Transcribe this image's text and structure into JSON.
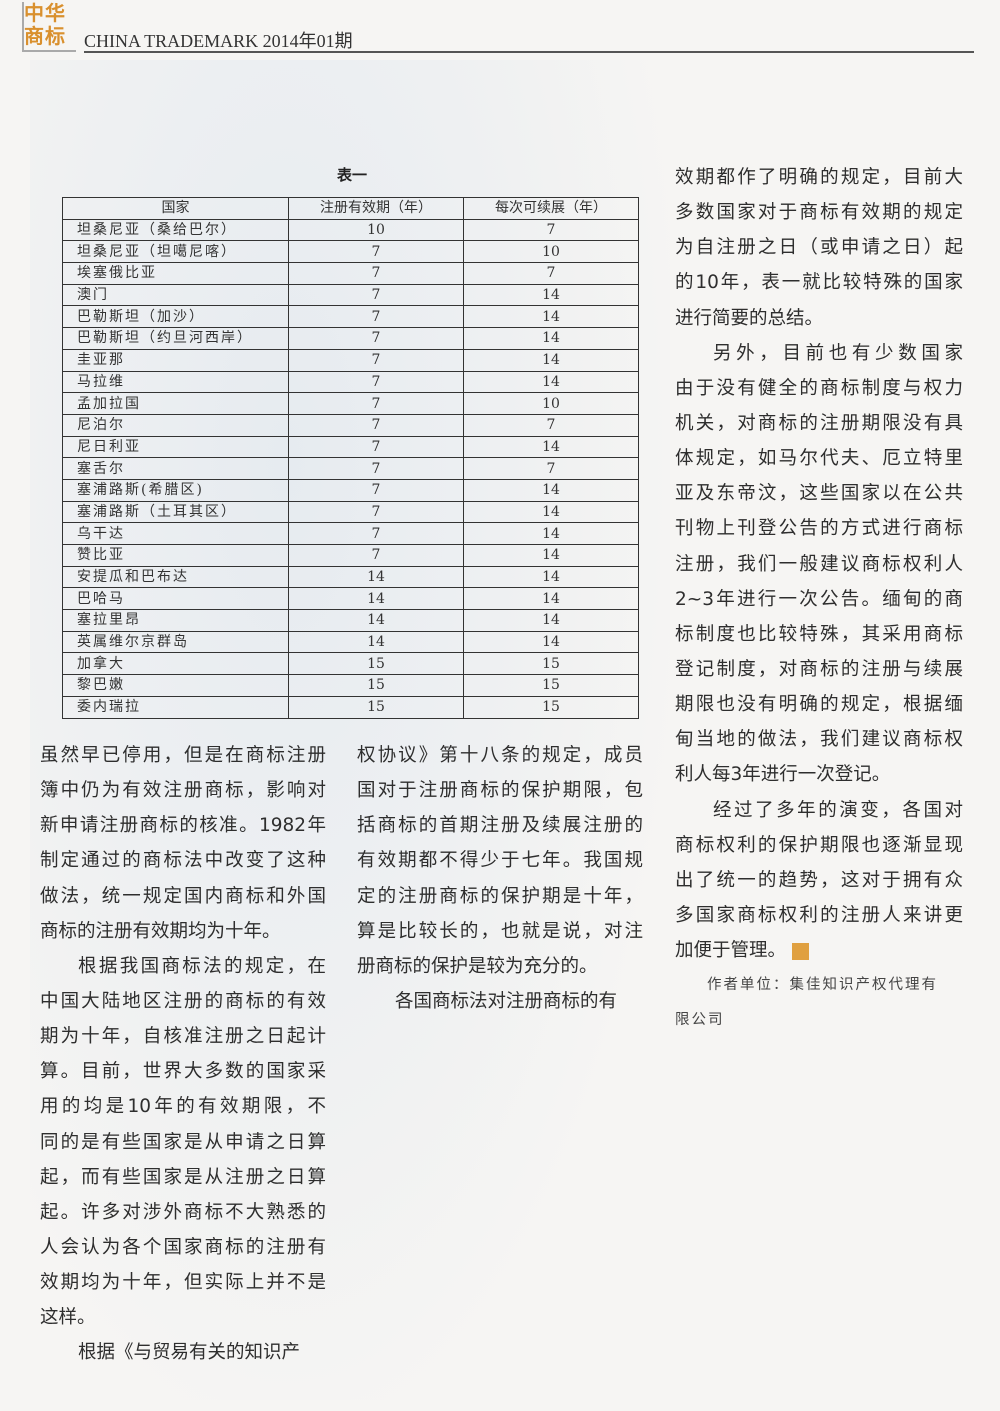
{
  "header": {
    "logo_text": "中华商标",
    "logo_line1": "中华",
    "logo_line2": "商标",
    "title": "CHINA TRADEMARK  2014年01期"
  },
  "table": {
    "caption": "表一",
    "headers": [
      "国家",
      "注册有效期（年）",
      "每次可续展（年）"
    ],
    "rows": [
      [
        "坦桑尼亚（桑给巴尔）",
        "10",
        "7"
      ],
      [
        "坦桑尼亚（坦噶尼喀）",
        "7",
        "10"
      ],
      [
        "埃塞俄比亚",
        "7",
        "7"
      ],
      [
        "澳门",
        "7",
        "14"
      ],
      [
        "巴勒斯坦（加沙）",
        "7",
        "14"
      ],
      [
        "巴勒斯坦（约旦河西岸）",
        "7",
        "14"
      ],
      [
        "圭亚那",
        "7",
        "14"
      ],
      [
        "马拉维",
        "7",
        "14"
      ],
      [
        "孟加拉国",
        "7",
        "10"
      ],
      [
        "尼泊尔",
        "7",
        "7"
      ],
      [
        "尼日利亚",
        "7",
        "14"
      ],
      [
        "塞舌尔",
        "7",
        "7"
      ],
      [
        "塞浦路斯(希腊区)",
        "7",
        "14"
      ],
      [
        "塞浦路斯（土耳其区）",
        "7",
        "14"
      ],
      [
        "乌干达",
        "7",
        "14"
      ],
      [
        "赞比亚",
        "7",
        "14"
      ],
      [
        "安提瓜和巴布达",
        "14",
        "14"
      ],
      [
        "巴哈马",
        "14",
        "14"
      ],
      [
        "塞拉里昂",
        "14",
        "14"
      ],
      [
        "英属维尔京群岛",
        "14",
        "14"
      ],
      [
        "加拿大",
        "15",
        "15"
      ],
      [
        "黎巴嫩",
        "15",
        "15"
      ],
      [
        "委内瑞拉",
        "15",
        "15"
      ]
    ]
  },
  "columns": {
    "left": [
      {
        "indent": false,
        "lines": [
          "虽然早已停用，但是在商标注册",
          "簿中仍为有效注册商标，影响对",
          "新申请注册商标的核准。1982年",
          "制定通过的商标法中改变了这种",
          "做法，统一规定国内商标和外国",
          "商标的注册有效期均为十年。"
        ]
      },
      {
        "indent": true,
        "lines": [
          "根据我国商标法的规定，在",
          "中国大陆地区注册的商标的有效",
          "期为十年，自核准注册之日起计",
          "算。目前，世界大多数的国家采",
          "用的均是10年的有效期限，不",
          "同的是有些国家是从申请之日算",
          "起，而有些国家是从注册之日算",
          "起。许多对涉外商标不大熟悉的",
          "人会认为各个国家商标的注册有",
          "效期均为十年，但实际上并不是",
          "这样。"
        ]
      },
      {
        "indent": true,
        "lines": [
          "根据《与贸易有关的知识产"
        ]
      }
    ],
    "middle": [
      {
        "indent": false,
        "lines": [
          "权协议》第十八条的规定，成员",
          "国对于注册商标的保护期限，包",
          "括商标的首期注册及续展注册的",
          "有效期都不得少于七年。我国规",
          "定的注册商标的保护期是十年，",
          "算是比较长的，也就是说，对注",
          "册商标的保护是较为充分的。"
        ]
      },
      {
        "indent": true,
        "lines": [
          "各国商标法对注册商标的有"
        ]
      }
    ],
    "right": [
      {
        "indent": false,
        "lines": [
          "效期都作了明确的规定，目前大",
          "多数国家对于商标有效期的规定",
          "为自注册之日（或申请之日）起",
          "的10年，表一就比较特殊的国家",
          "进行简要的总结。"
        ]
      },
      {
        "indent": true,
        "lines": [
          "另外，目前也有少数国家",
          "由于没有健全的商标制度与权力",
          "机关，对商标的注册期限没有具",
          "体规定，如马尔代夫、厄立特里",
          "亚及东帝汶，这些国家以在公共",
          "刊物上刊登公告的方式进行商标",
          "注册，我们一般建议商标权利人",
          "2~3年进行一次公告。缅甸的商",
          "标制度也比较特殊，其采用商标",
          "登记制度，对商标的注册与续展",
          "期限也没有明确的规定，根据缅",
          "甸当地的做法，我们建议商标权",
          "利人每3年进行一次登记。"
        ]
      },
      {
        "indent": true,
        "lines": [
          "经过了多年的演变，各国对",
          "商标权利的保护期限也逐渐显现",
          "出了统一的趋势，这对于拥有众",
          "多国家商标权利的注册人来讲更",
          "加便于管理。"
        ]
      }
    ]
  },
  "author": {
    "lines": [
      "作者单位：集佳知识产权代理有",
      "限公司"
    ]
  },
  "colors": {
    "logo": "#d9902e",
    "seal": "#e0a040"
  },
  "icons": {
    "end_mark": "seal-icon"
  }
}
